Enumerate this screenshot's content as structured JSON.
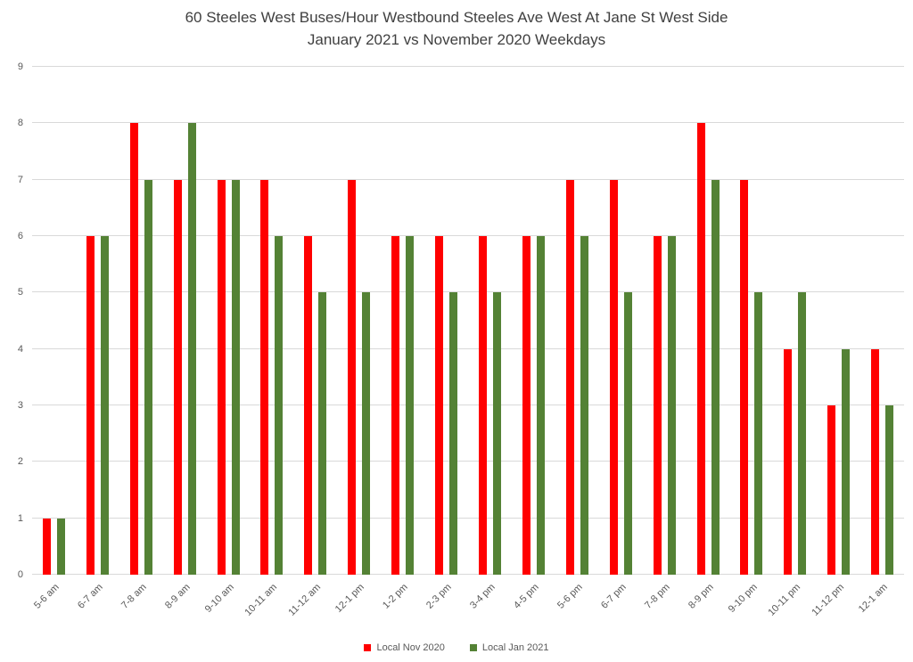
{
  "chart_data": {
    "type": "bar",
    "title": "60 Steeles West Buses/Hour Westbound Steeles Ave West At Jane St West Side",
    "subtitle": "January 2021 vs November 2020 Weekdays",
    "categories": [
      "5-6 am",
      "6-7 am",
      "7-8 am",
      "8-9 am",
      "9-10 am",
      "10-11 am",
      "11-12 am",
      "12-1 pm",
      "1-2 pm",
      "2-3 pm",
      "3-4 pm",
      "4-5 pm",
      "5-6 pm",
      "6-7 pm",
      "7-8 pm",
      "8-9 pm",
      "9-10 pm",
      "10-11 pm",
      "11-12 pm",
      "12-1 am"
    ],
    "series": [
      {
        "name": "Local Nov 2020",
        "color": "#FF0000",
        "values": [
          1,
          6,
          8,
          7,
          7,
          7,
          6,
          7,
          6,
          6,
          6,
          6,
          7,
          7,
          6,
          8,
          7,
          4,
          3,
          4
        ]
      },
      {
        "name": "Local Jan 2021",
        "color": "#548235",
        "values": [
          1,
          6,
          7,
          8,
          7,
          6,
          5,
          5,
          6,
          5,
          5,
          6,
          6,
          5,
          6,
          7,
          5,
          5,
          4,
          3
        ]
      }
    ],
    "xlabel": "",
    "ylabel": "",
    "ylim": [
      0,
      9
    ],
    "y_ticks": [
      0,
      1,
      2,
      3,
      4,
      5,
      6,
      7,
      8,
      9
    ],
    "grid": true,
    "legend_position": "bottom",
    "colors": {
      "gridline": "#d9d9d9",
      "axis_text": "#595959",
      "title_text": "#404040",
      "background": "#ffffff"
    }
  }
}
